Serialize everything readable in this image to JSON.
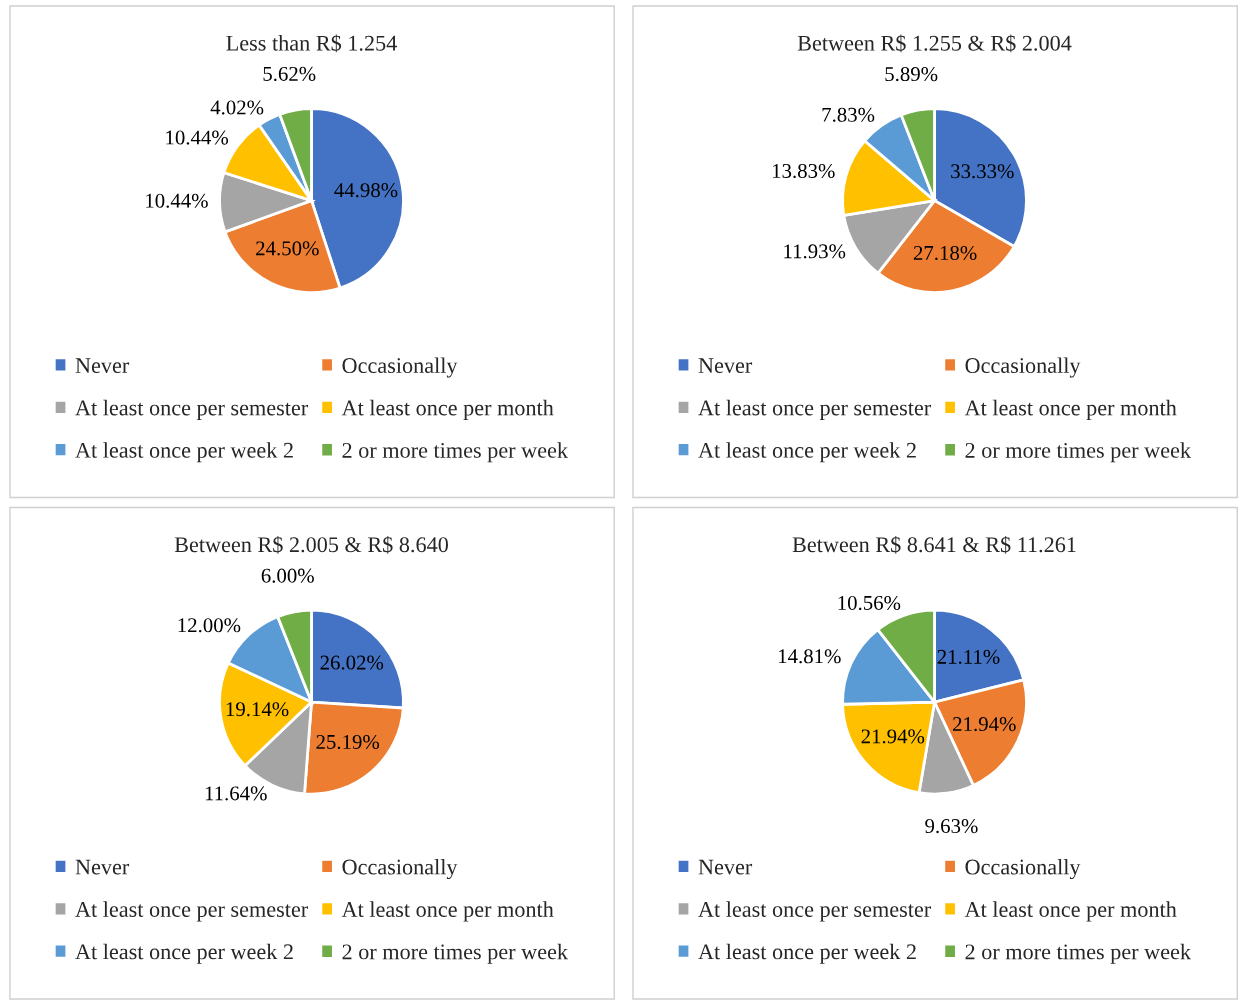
{
  "chart_data": [
    {
      "type": "pie",
      "title": "Less than R$ 1.254",
      "categories": [
        "Never",
        "Occasionally",
        "At least once per semester",
        "At least once per month",
        "At least once per week 2",
        "2 or more times per week"
      ],
      "values": [
        44.98,
        24.5,
        10.44,
        10.44,
        4.02,
        5.62
      ],
      "value_labels": [
        "44.98%",
        "24.50%",
        "10.44%",
        "10.44%",
        "4.02%",
        "5.62%"
      ],
      "colors": [
        "#4472c4",
        "#ed7d31",
        "#a5a5a5",
        "#ffc000",
        "#5b9bd5",
        "#70ad47"
      ],
      "legend": "bottom"
    },
    {
      "type": "pie",
      "title": "Between R$ 1.255 & R$ 2.004",
      "categories": [
        "Never",
        "Occasionally",
        "At least once per semester",
        "At least once per month",
        "At least once per week 2",
        "2 or more times per week"
      ],
      "values": [
        33.33,
        27.18,
        11.93,
        13.83,
        7.83,
        5.89
      ],
      "value_labels": [
        "33.33%",
        "27.18%",
        "11.93%",
        "13.83%",
        "7.83%",
        "5.89%"
      ],
      "colors": [
        "#4472c4",
        "#ed7d31",
        "#a5a5a5",
        "#ffc000",
        "#5b9bd5",
        "#70ad47"
      ],
      "legend": "bottom"
    },
    {
      "type": "pie",
      "title": "Between R$ 2.005 & R$ 8.640",
      "categories": [
        "Never",
        "Occasionally",
        "At least once per semester",
        "At least once per month",
        "At least once per week 2",
        "2 or more times per week"
      ],
      "values": [
        26.02,
        25.19,
        11.64,
        19.14,
        12.0,
        6.0
      ],
      "value_labels": [
        "26.02%",
        "25.19%",
        "11.64%",
        "19.14%",
        "12.00%",
        "6.00%"
      ],
      "colors": [
        "#4472c4",
        "#ed7d31",
        "#a5a5a5",
        "#ffc000",
        "#5b9bd5",
        "#70ad47"
      ],
      "legend": "bottom"
    },
    {
      "type": "pie",
      "title": "Between R$ 8.641 & R$ 11.261",
      "categories": [
        "Never",
        "Occasionally",
        "At least once per semester",
        "At least once per month",
        "At least once per week 2",
        "2 or more times per week"
      ],
      "values": [
        21.11,
        21.94,
        9.63,
        21.94,
        14.81,
        10.56
      ],
      "value_labels": [
        "21.11%",
        "21.94%",
        "9.63%",
        "21.94%",
        "14.81%",
        "10.56%"
      ],
      "colors": [
        "#4472c4",
        "#ed7d31",
        "#a5a5a5",
        "#ffc000",
        "#5b9bd5",
        "#70ad47"
      ],
      "legend": "bottom"
    }
  ]
}
